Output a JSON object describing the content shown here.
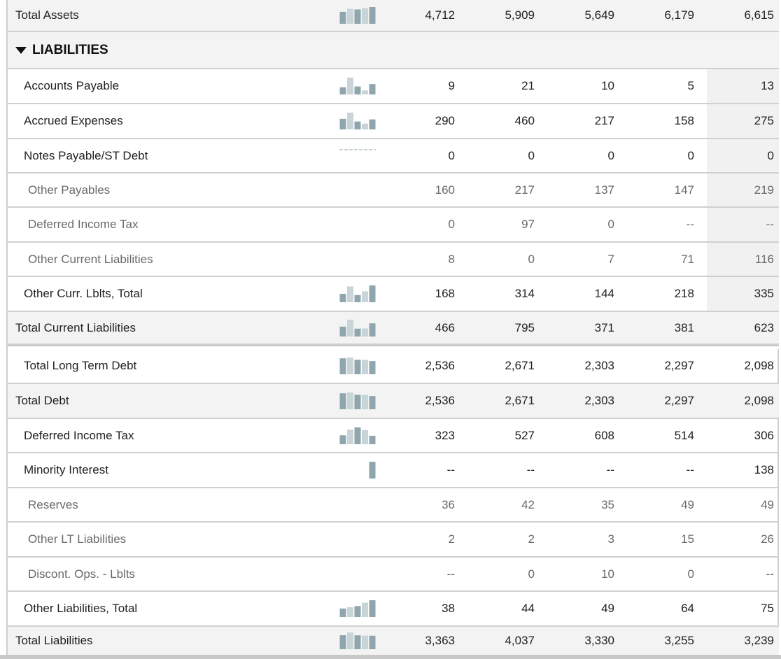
{
  "colors": {
    "spark_dark": "#8fa6ae",
    "spark_light": "#c9d4d8",
    "total_bg": "#f3f3f3",
    "grid": "#d0d0d0"
  },
  "total_assets": {
    "label": "Total Assets",
    "values": [
      "4,712",
      "5,909",
      "5,649",
      "6,179",
      "6,615"
    ],
    "spark": [
      4712,
      5909,
      5649,
      6179,
      6615
    ]
  },
  "section": {
    "title": "LIABILITIES",
    "icon": "caret-down-icon"
  },
  "rows": [
    {
      "label": "Accounts Payable",
      "values": [
        "9",
        "21",
        "10",
        "5",
        "13"
      ],
      "spark": [
        9,
        21,
        10,
        5,
        13
      ]
    },
    {
      "label": "Accrued Expenses",
      "values": [
        "290",
        "460",
        "217",
        "158",
        "275"
      ],
      "spark": [
        290,
        460,
        217,
        158,
        275
      ]
    },
    {
      "label": "Notes Payable/ST Debt",
      "values": [
        "0",
        "0",
        "0",
        "0",
        "0"
      ],
      "spark": [
        0,
        0,
        0,
        0,
        0
      ]
    },
    {
      "label": "Other Payables",
      "values": [
        "160",
        "217",
        "137",
        "147",
        "219"
      ]
    },
    {
      "label": "Deferred Income Tax",
      "values": [
        "0",
        "97",
        "0",
        "--",
        "--"
      ]
    },
    {
      "label": "Other Current Liabilities",
      "values": [
        "8",
        "0",
        "7",
        "71",
        "116"
      ]
    },
    {
      "label": "Other Curr. Lblts, Total",
      "values": [
        "168",
        "314",
        "144",
        "218",
        "335"
      ],
      "spark": [
        168,
        314,
        144,
        218,
        335
      ]
    },
    {
      "label": "Total Current Liabilities",
      "values": [
        "466",
        "795",
        "371",
        "381",
        "623"
      ],
      "spark": [
        466,
        795,
        371,
        381,
        623
      ]
    },
    {
      "label": "Total Long Term Debt",
      "values": [
        "2,536",
        "2,671",
        "2,303",
        "2,297",
        "2,098"
      ],
      "spark": [
        2536,
        2671,
        2303,
        2297,
        2098
      ]
    },
    {
      "label": "Total Debt",
      "values": [
        "2,536",
        "2,671",
        "2,303",
        "2,297",
        "2,098"
      ],
      "spark": [
        2536,
        2671,
        2303,
        2297,
        2098
      ]
    },
    {
      "label": "Deferred Income Tax",
      "values": [
        "323",
        "527",
        "608",
        "514",
        "306"
      ],
      "spark": [
        323,
        527,
        608,
        514,
        306
      ]
    },
    {
      "label": "Minority Interest",
      "values": [
        "--",
        "--",
        "--",
        "--",
        "138"
      ],
      "spark": [
        0,
        0,
        0,
        0,
        138
      ]
    },
    {
      "label": "Reserves",
      "values": [
        "36",
        "42",
        "35",
        "49",
        "49"
      ]
    },
    {
      "label": "Other LT Liabilities",
      "values": [
        "2",
        "2",
        "3",
        "15",
        "26"
      ]
    },
    {
      "label": "Discont. Ops. - Lblts",
      "values": [
        "--",
        "0",
        "10",
        "0",
        "--"
      ]
    },
    {
      "label": "Other Liabilities, Total",
      "values": [
        "38",
        "44",
        "49",
        "64",
        "75"
      ],
      "spark": [
        38,
        44,
        49,
        64,
        75
      ]
    },
    {
      "label": "Total Liabilities",
      "values": [
        "3,363",
        "4,037",
        "3,330",
        "3,255",
        "3,239"
      ],
      "spark": [
        3363,
        4037,
        3330,
        3255,
        3239
      ]
    }
  ]
}
